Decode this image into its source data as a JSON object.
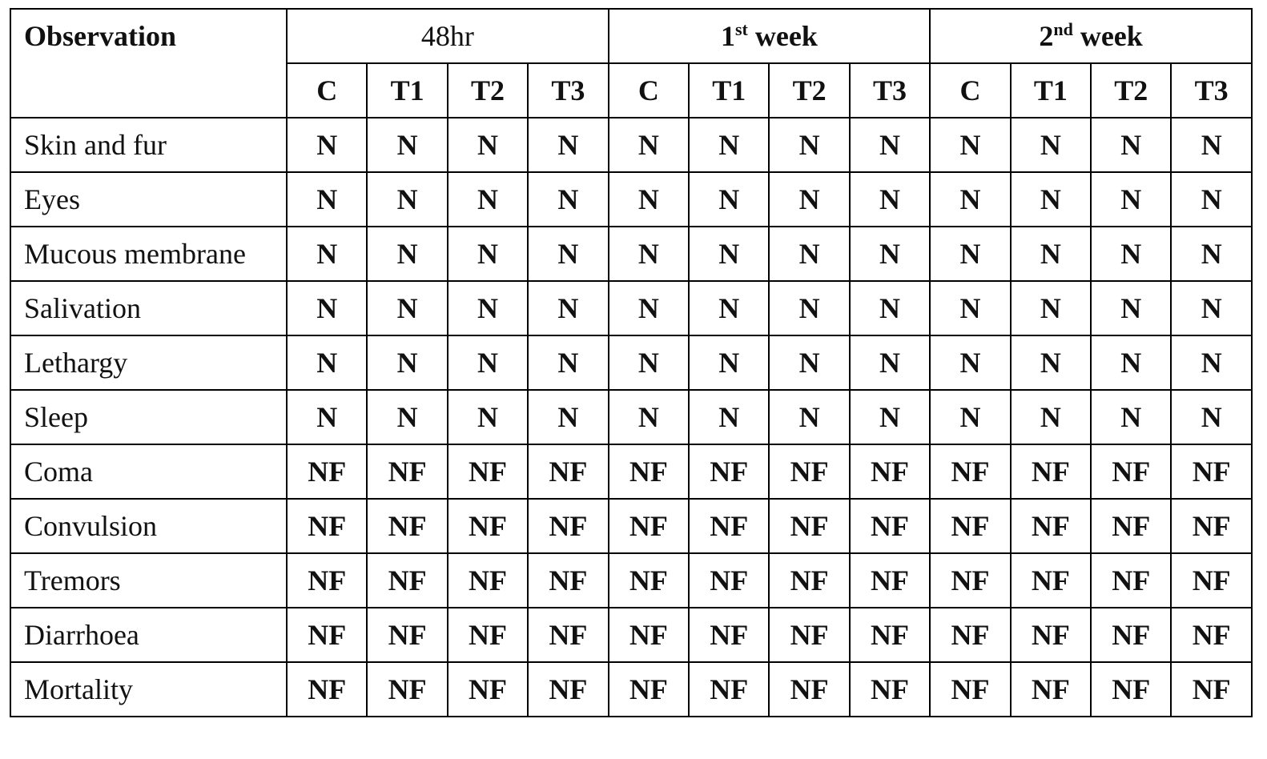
{
  "table": {
    "corner": "Observation",
    "groups": [
      {
        "number": "48hr",
        "sup": null,
        "word": null,
        "columns": [
          "C",
          "T1",
          "T2",
          "T3"
        ]
      },
      {
        "number": "1",
        "sup": "st",
        "word": "week",
        "columns": [
          "C",
          "T1",
          "T2",
          "T3"
        ]
      },
      {
        "number": "2",
        "sup": "nd",
        "word": "week",
        "columns": [
          "C",
          "T1",
          "T2",
          "T3"
        ]
      }
    ],
    "rows": [
      {
        "label": "Skin and fur",
        "values": [
          "N",
          "N",
          "N",
          "N",
          "N",
          "N",
          "N",
          "N",
          "N",
          "N",
          "N",
          "N"
        ]
      },
      {
        "label": "Eyes",
        "values": [
          "N",
          "N",
          "N",
          "N",
          "N",
          "N",
          "N",
          "N",
          "N",
          "N",
          "N",
          "N"
        ]
      },
      {
        "label": "Mucous membrane",
        "values": [
          "N",
          "N",
          "N",
          "N",
          "N",
          "N",
          "N",
          "N",
          "N",
          "N",
          "N",
          "N"
        ]
      },
      {
        "label": "Salivation",
        "values": [
          "N",
          "N",
          "N",
          "N",
          "N",
          "N",
          "N",
          "N",
          "N",
          "N",
          "N",
          "N"
        ]
      },
      {
        "label": "Lethargy",
        "values": [
          "N",
          "N",
          "N",
          "N",
          "N",
          "N",
          "N",
          "N",
          "N",
          "N",
          "N",
          "N"
        ]
      },
      {
        "label": "Sleep",
        "values": [
          "N",
          "N",
          "N",
          "N",
          "N",
          "N",
          "N",
          "N",
          "N",
          "N",
          "N",
          "N"
        ]
      },
      {
        "label": "Coma",
        "values": [
          "NF",
          "NF",
          "NF",
          "NF",
          "NF",
          "NF",
          "NF",
          "NF",
          "NF",
          "NF",
          "NF",
          "NF"
        ]
      },
      {
        "label": "Convulsion",
        "values": [
          "NF",
          "NF",
          "NF",
          "NF",
          "NF",
          "NF",
          "NF",
          "NF",
          "NF",
          "NF",
          "NF",
          "NF"
        ]
      },
      {
        "label": "Tremors",
        "values": [
          "NF",
          "NF",
          "NF",
          "NF",
          "NF",
          "NF",
          "NF",
          "NF",
          "NF",
          "NF",
          "NF",
          "NF"
        ]
      },
      {
        "label": "Diarrhoea",
        "values": [
          "NF",
          "NF",
          "NF",
          "NF",
          "NF",
          "NF",
          "NF",
          "NF",
          "NF",
          "NF",
          "NF",
          "NF"
        ]
      },
      {
        "label": "Mortality",
        "values": [
          "NF",
          "NF",
          "NF",
          "NF",
          "NF",
          "NF",
          "NF",
          "NF",
          "NF",
          "NF",
          "NF",
          "NF"
        ]
      }
    ]
  }
}
